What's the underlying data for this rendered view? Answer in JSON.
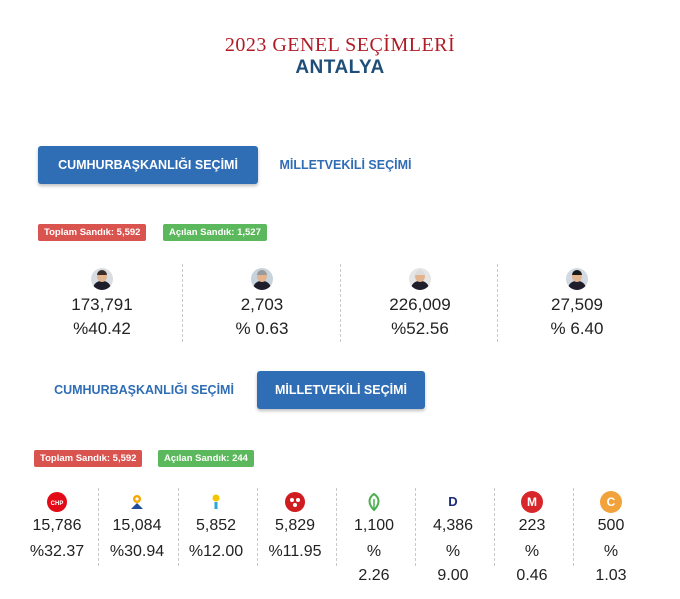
{
  "header": {
    "title_line1": "2023 GENEL SEÇİMLERİ",
    "title_line2": "ANTALYA"
  },
  "section1": {
    "tab_presidential": "CUMHURBAŞKANLIĞI SEÇİMİ",
    "tab_parliament": "MİLLETVEKİLİ SEÇİMİ",
    "active_tab": "presidential",
    "total_ballot": "Toplam Sandık: 5,592",
    "opened_ballot": "Açılan Sandık: 1,527",
    "candidates": [
      {
        "count": "173,791",
        "percent": "%40.42",
        "icon": "candidate-photo-1"
      },
      {
        "count": "2,703",
        "percent": "% 0.63",
        "icon": "candidate-photo-2"
      },
      {
        "count": "226,009",
        "percent": "%52.56",
        "icon": "candidate-photo-3"
      },
      {
        "count": "27,509",
        "percent": "% 6.40",
        "icon": "candidate-photo-4"
      }
    ]
  },
  "section2": {
    "tab_presidential": "CUMHURBAŞKANLIĞI SEÇİMİ",
    "tab_parliament": "MİLLETVEKİLİ SEÇİMİ",
    "active_tab": "parliament",
    "total_ballot": "Toplam Sandık: 5,592",
    "opened_ballot": "Açılan Sandık: 244",
    "parties": [
      {
        "count": "15,786",
        "pct_line1": "%32.37",
        "pct_line2": "",
        "icon": "chp-logo",
        "color": "#e30a17"
      },
      {
        "count": "15,084",
        "pct_line1": "%30.94",
        "pct_line2": "",
        "icon": "akp-logo",
        "color": "#f7a600"
      },
      {
        "count": "5,852",
        "pct_line1": "%12.00",
        "pct_line2": "",
        "icon": "iyi-logo",
        "color": "#2aa7dd"
      },
      {
        "count": "5,829",
        "pct_line1": "%11.95",
        "pct_line2": "",
        "icon": "mhp-logo",
        "color": "#d01c21"
      },
      {
        "count": "1,100",
        "pct_line1": "%",
        "pct_line2": "2.26",
        "icon": "yesil-sol-logo",
        "color": "#4caf50"
      },
      {
        "count": "4,386",
        "pct_line1": "%",
        "pct_line2": "9.00",
        "icon": "dem-logo",
        "color": "#1b2b7a",
        "glyph": "D"
      },
      {
        "count": "223",
        "pct_line1": "%",
        "pct_line2": "0.46",
        "icon": "memleket-logo",
        "color": "#d9262b",
        "glyph": "M"
      },
      {
        "count": "500",
        "pct_line1": "%",
        "pct_line2": "1.03",
        "icon": "zafer-logo",
        "color": "#f2a23a",
        "glyph": "C"
      }
    ]
  }
}
